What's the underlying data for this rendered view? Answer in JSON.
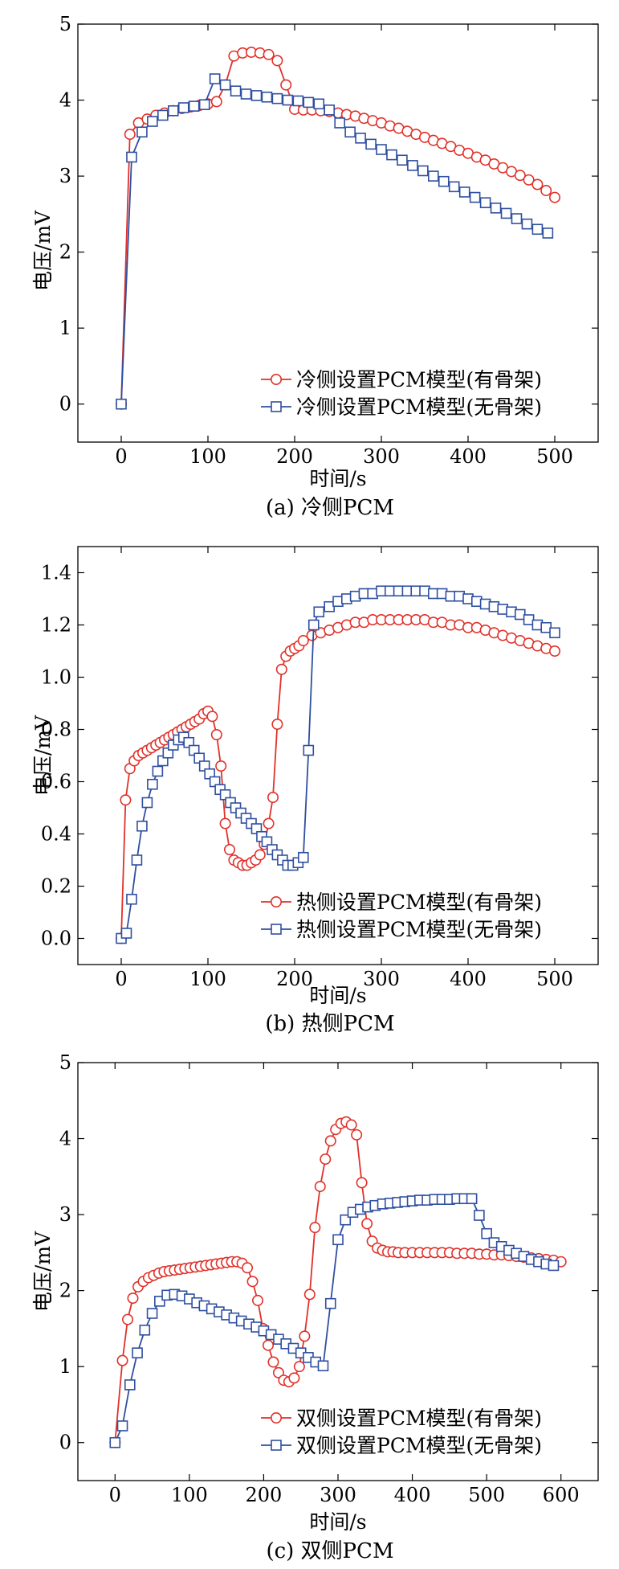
{
  "colors": {
    "red": "#e0312a",
    "blue": "#2f4f9f",
    "axis": "#000000"
  },
  "chart_data": [
    {
      "type": "line",
      "caption": "(a) 冷侧PCM",
      "xlabel": "时间/s",
      "ylabel": "电压/mV",
      "xlim": [
        -50,
        550
      ],
      "ylim": [
        -0.5,
        5
      ],
      "xticks": [
        0,
        100,
        200,
        300,
        400,
        500
      ],
      "xtick_labels": [
        "0",
        "100",
        "200",
        "300",
        "400",
        "500"
      ],
      "yticks": [
        0,
        1,
        2,
        3,
        4,
        5
      ],
      "ytick_labels": [
        "0",
        "1",
        "2",
        "3",
        "4",
        "5"
      ],
      "legend": "bottom-right",
      "series": [
        {
          "name": "冷侧设置PCM模型(有骨架)",
          "marker": "circle",
          "color": "#e0312a",
          "x": [
            0,
            10,
            20,
            30,
            40,
            50,
            60,
            70,
            80,
            90,
            100,
            110,
            120,
            130,
            140,
            150,
            160,
            170,
            180,
            190,
            200,
            210,
            220,
            230,
            240,
            250,
            260,
            270,
            280,
            290,
            300,
            310,
            320,
            330,
            340,
            350,
            360,
            370,
            380,
            390,
            400,
            410,
            420,
            430,
            440,
            450,
            460,
            470,
            480,
            490,
            500
          ],
          "y": [
            0,
            3.55,
            3.7,
            3.75,
            3.8,
            3.83,
            3.86,
            3.89,
            3.91,
            3.93,
            3.95,
            3.98,
            4.2,
            4.58,
            4.62,
            4.63,
            4.62,
            4.6,
            4.52,
            4.2,
            3.88,
            3.87,
            3.87,
            3.86,
            3.85,
            3.83,
            3.81,
            3.79,
            3.76,
            3.73,
            3.7,
            3.66,
            3.63,
            3.59,
            3.55,
            3.51,
            3.47,
            3.43,
            3.39,
            3.34,
            3.3,
            3.25,
            3.21,
            3.16,
            3.11,
            3.06,
            3.01,
            2.95,
            2.89,
            2.81,
            2.72
          ]
        },
        {
          "name": "冷侧设置PCM模型(无骨架)",
          "marker": "square",
          "color": "#2f4f9f",
          "x": [
            0,
            12,
            24,
            36,
            48,
            60,
            72,
            84,
            96,
            108,
            120,
            132,
            144,
            156,
            168,
            180,
            192,
            204,
            216,
            228,
            240,
            252,
            264,
            276,
            288,
            300,
            312,
            324,
            336,
            348,
            360,
            372,
            384,
            396,
            408,
            420,
            432,
            444,
            456,
            468,
            480,
            492
          ],
          "y": [
            0,
            3.25,
            3.58,
            3.72,
            3.8,
            3.86,
            3.9,
            3.92,
            3.94,
            4.28,
            4.2,
            4.12,
            4.08,
            4.06,
            4.04,
            4.02,
            4.0,
            3.99,
            3.97,
            3.95,
            3.87,
            3.7,
            3.58,
            3.5,
            3.42,
            3.35,
            3.28,
            3.21,
            3.14,
            3.07,
            3.0,
            2.93,
            2.86,
            2.79,
            2.72,
            2.65,
            2.58,
            2.51,
            2.44,
            2.37,
            2.3,
            2.25
          ]
        }
      ]
    },
    {
      "type": "line",
      "caption": "(b) 热侧PCM",
      "xlabel": "时间/s",
      "ylabel": "电压/mV",
      "xlim": [
        -50,
        550
      ],
      "ylim": [
        -0.1,
        1.5
      ],
      "xticks": [
        0,
        100,
        200,
        300,
        400,
        500
      ],
      "xtick_labels": [
        "0",
        "100",
        "200",
        "300",
        "400",
        "500"
      ],
      "yticks": [
        0,
        0.2,
        0.4,
        0.6,
        0.8,
        1.0,
        1.2,
        1.4
      ],
      "ytick_labels": [
        "0.0",
        "0.2",
        "0.4",
        "0.6",
        "0.8",
        "1.0",
        "1.2",
        "1.4"
      ],
      "legend": "bottom-right",
      "series": [
        {
          "name": "热侧设置PCM模型(有骨架)",
          "marker": "circle",
          "color": "#e0312a",
          "x": [
            0,
            5,
            10,
            15,
            20,
            25,
            30,
            35,
            40,
            45,
            50,
            55,
            60,
            65,
            70,
            75,
            80,
            85,
            90,
            95,
            100,
            105,
            110,
            115,
            120,
            125,
            130,
            135,
            140,
            145,
            150,
            155,
            160,
            165,
            170,
            175,
            180,
            185,
            190,
            195,
            200,
            205,
            210,
            220,
            230,
            240,
            250,
            260,
            270,
            280,
            290,
            300,
            310,
            320,
            330,
            340,
            350,
            360,
            370,
            380,
            390,
            400,
            410,
            420,
            430,
            440,
            450,
            460,
            470,
            480,
            490,
            500
          ],
          "y": [
            0,
            0.53,
            0.65,
            0.68,
            0.7,
            0.71,
            0.72,
            0.73,
            0.74,
            0.75,
            0.76,
            0.77,
            0.78,
            0.79,
            0.8,
            0.81,
            0.82,
            0.83,
            0.84,
            0.86,
            0.87,
            0.85,
            0.78,
            0.66,
            0.44,
            0.34,
            0.3,
            0.29,
            0.28,
            0.28,
            0.29,
            0.3,
            0.32,
            0.36,
            0.44,
            0.54,
            0.82,
            1.03,
            1.08,
            1.1,
            1.11,
            1.12,
            1.14,
            1.16,
            1.17,
            1.18,
            1.19,
            1.2,
            1.21,
            1.21,
            1.22,
            1.22,
            1.22,
            1.22,
            1.22,
            1.22,
            1.22,
            1.21,
            1.21,
            1.2,
            1.2,
            1.19,
            1.19,
            1.18,
            1.17,
            1.16,
            1.15,
            1.14,
            1.13,
            1.12,
            1.11,
            1.1
          ]
        },
        {
          "name": "热侧设置PCM模型(无骨架)",
          "marker": "square",
          "color": "#2f4f9f",
          "x": [
            0,
            6,
            12,
            18,
            24,
            30,
            36,
            42,
            48,
            54,
            60,
            66,
            72,
            78,
            84,
            90,
            96,
            102,
            108,
            114,
            120,
            126,
            132,
            138,
            144,
            150,
            156,
            162,
            168,
            174,
            180,
            186,
            192,
            198,
            204,
            210,
            216,
            222,
            228,
            240,
            250,
            260,
            270,
            280,
            290,
            300,
            310,
            320,
            330,
            340,
            350,
            360,
            370,
            380,
            390,
            400,
            410,
            420,
            430,
            440,
            450,
            460,
            470,
            480,
            490,
            500
          ],
          "y": [
            0,
            0.02,
            0.15,
            0.3,
            0.43,
            0.52,
            0.59,
            0.64,
            0.68,
            0.71,
            0.74,
            0.76,
            0.77,
            0.75,
            0.72,
            0.69,
            0.66,
            0.63,
            0.6,
            0.57,
            0.55,
            0.52,
            0.5,
            0.48,
            0.46,
            0.44,
            0.42,
            0.39,
            0.37,
            0.34,
            0.32,
            0.3,
            0.28,
            0.28,
            0.29,
            0.31,
            0.72,
            1.2,
            1.25,
            1.27,
            1.29,
            1.3,
            1.31,
            1.32,
            1.32,
            1.33,
            1.33,
            1.33,
            1.33,
            1.33,
            1.33,
            1.32,
            1.32,
            1.31,
            1.31,
            1.3,
            1.29,
            1.28,
            1.27,
            1.26,
            1.25,
            1.24,
            1.22,
            1.2,
            1.19,
            1.17
          ]
        }
      ]
    },
    {
      "type": "line",
      "caption": "(c) 双侧PCM",
      "xlabel": "时间/s",
      "ylabel": "电压/mV",
      "xlim": [
        -50,
        650
      ],
      "ylim": [
        -0.5,
        5
      ],
      "xticks": [
        0,
        100,
        200,
        300,
        400,
        500,
        600
      ],
      "xtick_labels": [
        "0",
        "100",
        "200",
        "300",
        "400",
        "500",
        "600"
      ],
      "yticks": [
        0,
        1,
        2,
        3,
        4,
        5
      ],
      "ytick_labels": [
        "0",
        "1",
        "2",
        "3",
        "4",
        "5"
      ],
      "legend": "bottom-right",
      "series": [
        {
          "name": "双侧设置PCM模型(有骨架)",
          "marker": "circle",
          "color": "#e0312a",
          "x": [
            0,
            10,
            17,
            24,
            31,
            38,
            45,
            52,
            59,
            66,
            73,
            80,
            87,
            94,
            101,
            108,
            115,
            122,
            129,
            136,
            143,
            150,
            157,
            164,
            171,
            178,
            185,
            192,
            199,
            206,
            213,
            220,
            227,
            234,
            241,
            248,
            255,
            262,
            269,
            276,
            283,
            290,
            297,
            304,
            311,
            318,
            325,
            332,
            339,
            346,
            353,
            360,
            367,
            374,
            381,
            390,
            400,
            410,
            420,
            430,
            440,
            450,
            460,
            470,
            480,
            490,
            500,
            510,
            520,
            530,
            540,
            550,
            560,
            570,
            580,
            590,
            600
          ],
          "y": [
            0,
            1.08,
            1.62,
            1.9,
            2.05,
            2.12,
            2.17,
            2.2,
            2.23,
            2.25,
            2.26,
            2.27,
            2.28,
            2.29,
            2.3,
            2.31,
            2.32,
            2.33,
            2.34,
            2.35,
            2.36,
            2.37,
            2.38,
            2.38,
            2.36,
            2.3,
            2.12,
            1.87,
            1.5,
            1.28,
            1.06,
            0.92,
            0.82,
            0.8,
            0.85,
            1.0,
            1.4,
            1.95,
            2.83,
            3.37,
            3.73,
            3.97,
            4.12,
            4.2,
            4.22,
            4.18,
            4.05,
            3.42,
            2.88,
            2.65,
            2.56,
            2.53,
            2.51,
            2.51,
            2.5,
            2.5,
            2.5,
            2.5,
            2.5,
            2.5,
            2.5,
            2.5,
            2.49,
            2.49,
            2.49,
            2.48,
            2.48,
            2.47,
            2.47,
            2.46,
            2.45,
            2.44,
            2.43,
            2.42,
            2.41,
            2.4,
            2.38
          ]
        },
        {
          "name": "双侧设置PCM模型(无骨架)",
          "marker": "square",
          "color": "#2f4f9f",
          "x": [
            0,
            10,
            20,
            30,
            40,
            50,
            60,
            70,
            80,
            90,
            100,
            110,
            120,
            130,
            140,
            150,
            160,
            170,
            180,
            190,
            200,
            210,
            220,
            230,
            240,
            250,
            260,
            270,
            280,
            290,
            300,
            310,
            320,
            330,
            340,
            350,
            360,
            370,
            380,
            390,
            400,
            410,
            420,
            430,
            440,
            450,
            460,
            470,
            480,
            490,
            500,
            510,
            520,
            530,
            540,
            550,
            560,
            570,
            580,
            590
          ],
          "y": [
            0,
            0.22,
            0.76,
            1.18,
            1.48,
            1.7,
            1.86,
            1.94,
            1.95,
            1.93,
            1.89,
            1.84,
            1.8,
            1.76,
            1.72,
            1.68,
            1.64,
            1.6,
            1.56,
            1.52,
            1.47,
            1.42,
            1.36,
            1.3,
            1.24,
            1.18,
            1.12,
            1.06,
            1.01,
            1.83,
            2.67,
            2.93,
            3.03,
            3.07,
            3.1,
            3.12,
            3.14,
            3.15,
            3.16,
            3.17,
            3.18,
            3.19,
            3.19,
            3.2,
            3.2,
            3.2,
            3.21,
            3.21,
            3.21,
            2.99,
            2.75,
            2.63,
            2.58,
            2.53,
            2.49,
            2.45,
            2.41,
            2.38,
            2.35,
            2.33
          ]
        }
      ]
    }
  ]
}
